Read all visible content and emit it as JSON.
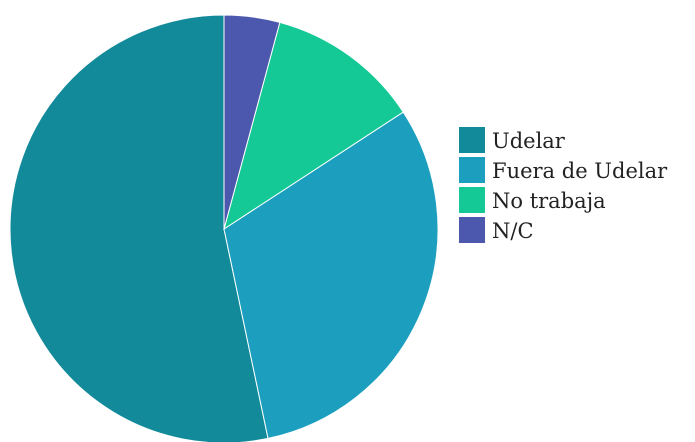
{
  "chart_data": {
    "type": "pie",
    "title": "",
    "legend_position": "right",
    "slices": [
      {
        "label": "Udelar",
        "value": 53.3,
        "color": "#138a9a"
      },
      {
        "label": "Fuera de Udelar",
        "value": 30.9,
        "color": "#1c9fbf"
      },
      {
        "label": "No trabaja",
        "value": 11.6,
        "color": "#14c995"
      },
      {
        "label": "N/C",
        "value": 4.2,
        "color": "#4b58ad"
      }
    ],
    "start_angle_deg": 0,
    "direction": "counterclockwise"
  }
}
